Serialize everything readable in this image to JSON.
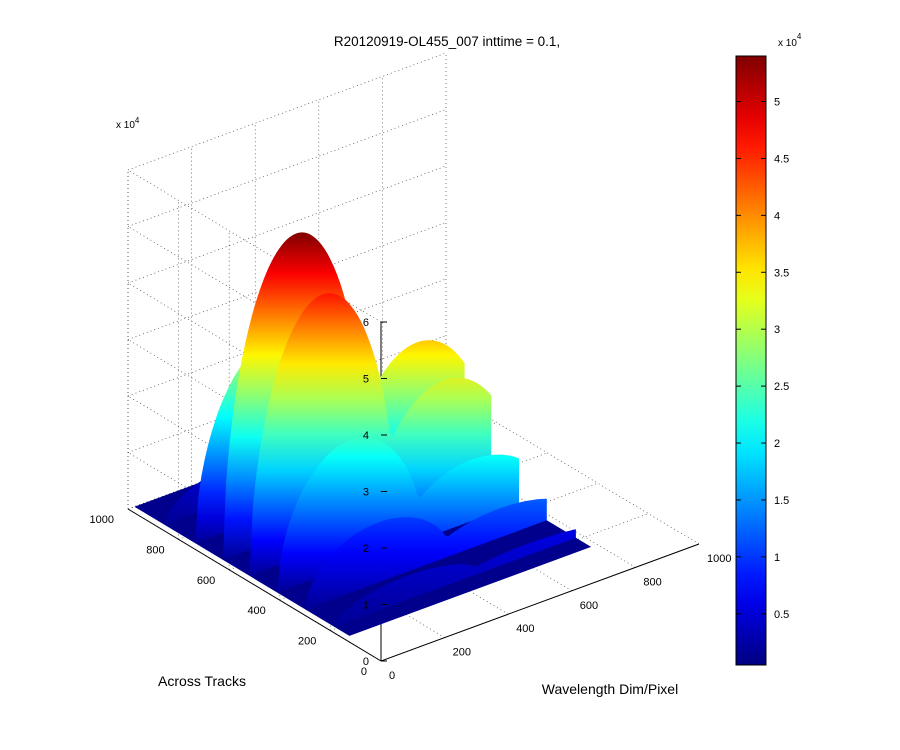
{
  "chart_data": {
    "type": "surface",
    "title": "R20120919-OL455_007 inttime = 0.1,",
    "xlabel": "Wavelength Dim/Pixel",
    "ylabel": "Across Tracks",
    "x_ticks": [
      0,
      200,
      400,
      600,
      800,
      1000
    ],
    "y_ticks": [
      0,
      200,
      400,
      600,
      800,
      1000
    ],
    "z_ticks": [
      0,
      1,
      2,
      3,
      4,
      5,
      6
    ],
    "z_multiplier": "x 10",
    "z_multiplier_exp": "4",
    "xlim": [
      0,
      1000
    ],
    "ylim": [
      0,
      1000
    ],
    "zlim": [
      0,
      60000
    ],
    "colormap": "jet",
    "grid": true,
    "lobes_y": [
      880,
      760,
      650,
      545,
      435,
      325,
      210
    ],
    "lobes_x": [
      {
        "center": 250,
        "width": 230,
        "peak": 41000
      },
      {
        "center": 390,
        "width": 80,
        "peak": 8000
      },
      {
        "center": 480,
        "width": 90,
        "peak": 5000
      },
      {
        "center": 630,
        "width": 230,
        "peak": 20000
      }
    ],
    "row_scale": [
      0.12,
      0.58,
      1.0,
      0.85,
      0.42,
      0.2,
      0.08
    ],
    "peak_value": 53000,
    "colorbar": {
      "ticks": [
        0.5,
        1,
        1.5,
        2,
        2.5,
        3,
        3.5,
        4,
        4.5,
        5
      ],
      "range": [
        0.05,
        5.4
      ],
      "multiplier": "x 10",
      "multiplier_exp": "4"
    }
  }
}
